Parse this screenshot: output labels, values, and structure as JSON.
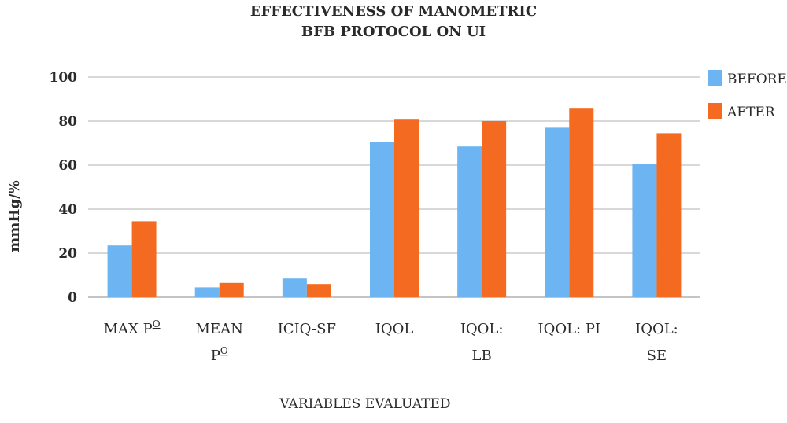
{
  "chart_data": {
    "type": "bar",
    "title_lines": [
      "EFFECTIVENESS OF MANOMETRIC",
      "BFB PROTOCOL ON UI"
    ],
    "xlabel": "VARIABLES EVALUATED",
    "ylabel": "mmHg/%",
    "ylim": [
      0,
      100
    ],
    "yticks": [
      0,
      20,
      40,
      60,
      80,
      100
    ],
    "grid": true,
    "legend_position": "top-right",
    "categories": [
      {
        "lines": [
          "MAX P",
          ""
        ],
        "sup": "O"
      },
      {
        "lines": [
          "MEAN",
          "P"
        ],
        "sup": "O"
      },
      {
        "lines": [
          "ICIQ-SF"
        ],
        "sup": ""
      },
      {
        "lines": [
          "IQOL"
        ],
        "sup": ""
      },
      {
        "lines": [
          "IQOL:",
          "LB"
        ],
        "sup": ""
      },
      {
        "lines": [
          "IQOL: PI"
        ],
        "sup": ""
      },
      {
        "lines": [
          "IQOL:",
          "SE"
        ],
        "sup": ""
      }
    ],
    "series": [
      {
        "name": "BEFORE",
        "color": "#6cb5f2",
        "values": [
          23.5,
          4.5,
          8.5,
          70.5,
          68.5,
          77.0,
          60.5
        ]
      },
      {
        "name": "AFTER",
        "color": "#f46a21",
        "values": [
          34.5,
          6.5,
          6.0,
          81.0,
          80.0,
          86.0,
          74.5
        ]
      }
    ]
  }
}
